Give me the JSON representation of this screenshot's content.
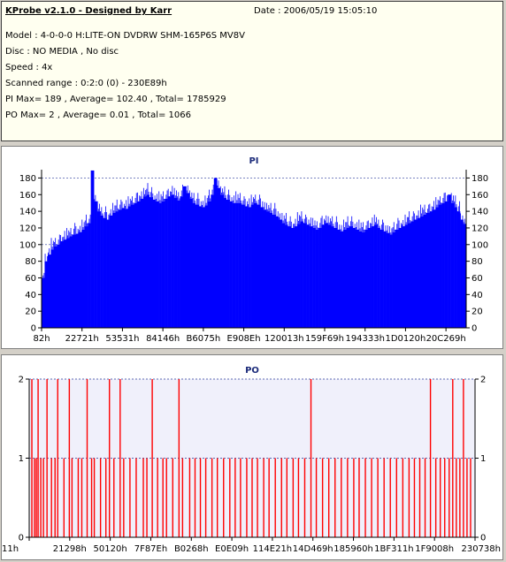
{
  "header": {
    "title": "KProbe v2.1.0 - Designed by Karr",
    "date": "Date : 2006/05/19 15:05:10",
    "lines": [
      "Model : 4-0-0-0 H:LITE-ON DVDRW SHM-165P6S MV8V",
      "Disc : NO MEDIA , No disc",
      "Speed : 4x",
      "Scanned range : 0:2:0 (0) - 230E89h",
      "PI Max= 189 , Average= 102.40 , Total= 1785929",
      "PO Max= 2 , Average= 0.01 , Total= 1066"
    ]
  },
  "colors": {
    "pi": "#0000ff",
    "po": "#ff0000",
    "axis": "#000000",
    "grid": "#2a3a9a",
    "title": "#1c2b7a"
  },
  "chart_data": [
    {
      "type": "area",
      "title": "PI",
      "ylim": [
        0,
        190
      ],
      "yticks": [
        0,
        20,
        40,
        60,
        80,
        100,
        120,
        140,
        160,
        180
      ],
      "xticks": [
        "82h",
        "22721h",
        "53531h",
        "84146h",
        "B6075h",
        "E908Eh",
        "120013h",
        "159F69h",
        "194333h",
        "1D0120h",
        "20C269h"
      ],
      "grid_y": [
        100,
        180
      ],
      "series": [
        {
          "values": [
            60,
            80,
            88,
            94,
            98,
            100,
            104,
            106,
            108,
            110,
            112,
            113,
            115,
            118,
            122,
            126,
            189,
            152,
            140,
            135,
            132,
            130,
            135,
            138,
            140,
            142,
            144,
            143,
            146,
            148,
            150,
            152,
            155,
            158,
            160,
            157,
            154,
            152,
            150,
            152,
            155,
            158,
            160,
            156,
            153,
            158,
            170,
            162,
            155,
            150,
            148,
            146,
            145,
            147,
            152,
            160,
            180,
            168,
            160,
            156,
            154,
            152,
            150,
            150,
            150,
            148,
            146,
            145,
            148,
            150,
            148,
            145,
            142,
            140,
            138,
            136,
            134,
            130,
            126,
            124,
            122,
            120,
            122,
            125,
            128,
            126,
            124,
            122,
            120,
            118,
            120,
            124,
            126,
            124,
            122,
            120,
            118,
            116,
            118,
            120,
            122,
            120,
            118,
            116,
            115,
            118,
            120,
            122,
            124,
            120,
            118,
            116,
            114,
            112,
            115,
            118,
            120,
            122,
            124,
            126,
            128,
            130,
            132,
            134,
            136,
            138,
            140,
            142,
            145,
            148,
            150,
            152,
            160,
            150,
            145,
            140,
            130,
            125
          ],
          "overshoot": [
            6,
            12,
            10,
            14,
            10,
            12,
            10,
            14,
            12,
            10,
            14,
            12,
            10,
            12,
            14,
            10,
            0,
            10,
            12,
            10,
            14,
            12,
            10,
            12,
            14,
            12,
            10,
            14,
            12,
            10,
            12,
            14,
            12,
            10,
            14,
            12,
            10,
            12,
            14,
            12,
            10,
            12,
            14,
            12,
            10,
            14,
            0,
            12,
            10,
            12,
            14,
            12,
            10,
            12,
            14,
            12,
            0,
            12,
            10,
            14,
            12,
            10,
            12,
            14,
            12,
            10,
            12,
            14,
            12,
            10,
            12,
            14,
            12,
            10,
            12,
            14,
            12,
            10,
            12,
            14,
            12,
            10,
            12,
            14,
            12,
            10,
            12,
            14,
            12,
            10,
            12,
            14,
            12,
            10,
            12,
            14,
            12,
            10,
            12,
            14,
            12,
            10,
            12,
            14,
            12,
            10,
            12,
            14,
            12,
            10,
            12,
            14,
            12,
            10,
            12,
            14,
            12,
            10,
            12,
            14,
            12,
            10,
            12,
            14,
            12,
            10,
            12,
            14,
            12,
            10,
            12,
            14,
            0,
            12,
            14,
            12,
            10,
            8
          ]
        }
      ]
    },
    {
      "type": "bar",
      "title": "PO",
      "ylim": [
        0,
        2
      ],
      "yticks": [
        0,
        1,
        2
      ],
      "xticks": [
        "11h",
        "21298h",
        "50120h",
        "7F87Eh",
        "B0268h",
        "E0E09h",
        "114E21h",
        "14D469h",
        "185960h",
        "1BF311h",
        "1F9008h",
        "230738h"
      ],
      "grid_y": [
        1,
        2
      ],
      "x_positions": [
        0.006,
        0.012,
        0.016,
        0.02,
        0.026,
        0.032,
        0.04,
        0.05,
        0.058,
        0.064,
        0.078,
        0.09,
        0.096,
        0.11,
        0.118,
        0.13,
        0.14,
        0.146,
        0.16,
        0.172,
        0.18,
        0.19,
        0.204,
        0.212,
        0.226,
        0.24,
        0.256,
        0.264,
        0.276,
        0.288,
        0.3,
        0.308,
        0.322,
        0.336,
        0.344,
        0.36,
        0.372,
        0.384,
        0.396,
        0.41,
        0.422,
        0.436,
        0.45,
        0.462,
        0.474,
        0.488,
        0.5,
        0.512,
        0.526,
        0.538,
        0.552,
        0.566,
        0.578,
        0.592,
        0.604,
        0.618,
        0.632,
        0.644,
        0.658,
        0.672,
        0.686,
        0.7,
        0.714,
        0.728,
        0.74,
        0.754,
        0.768,
        0.782,
        0.796,
        0.81,
        0.824,
        0.838,
        0.852,
        0.864,
        0.876,
        0.888,
        0.9,
        0.912,
        0.922,
        0.932,
        0.942,
        0.95,
        0.958,
        0.966,
        0.974,
        0.982,
        0.99
      ],
      "values": [
        2,
        1,
        1,
        2,
        1,
        1,
        2,
        1,
        1,
        2,
        1,
        2,
        1,
        1,
        1,
        2,
        1,
        1,
        1,
        1,
        2,
        1,
        2,
        1,
        1,
        1,
        1,
        1,
        2,
        1,
        1,
        1,
        1,
        2,
        1,
        1,
        1,
        1,
        1,
        1,
        1,
        1,
        1,
        1,
        1,
        1,
        1,
        1,
        1,
        1,
        1,
        1,
        1,
        1,
        1,
        1,
        2,
        1,
        1,
        1,
        1,
        1,
        1,
        1,
        1,
        1,
        1,
        1,
        1,
        1,
        1,
        1,
        1,
        1,
        1,
        1,
        2,
        1,
        1,
        1,
        1,
        2,
        1,
        1,
        2,
        1,
        1
      ]
    }
  ]
}
